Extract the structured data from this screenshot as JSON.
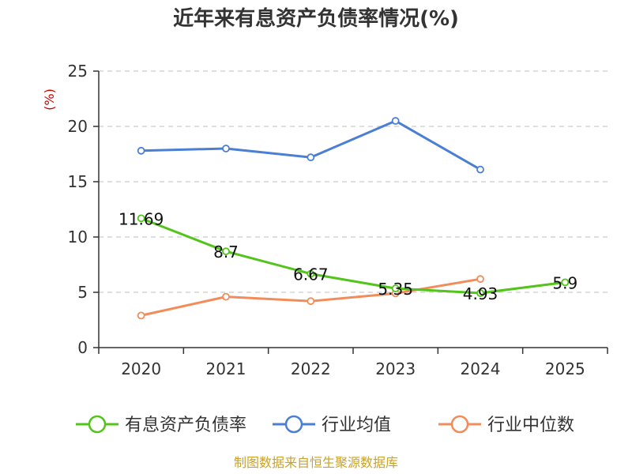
{
  "chart_data": {
    "type": "line",
    "title": "近年来有息资产负债率情况(%)",
    "ylabel": "(%)",
    "xlabel": "",
    "categories": [
      "2020",
      "2021",
      "2022",
      "2023",
      "2024",
      "2025"
    ],
    "ylim": [
      0,
      25
    ],
    "yticks": [
      0,
      5,
      10,
      15,
      20,
      25
    ],
    "grid": true,
    "legend_position": "bottom",
    "series": [
      {
        "name": "有息资产负债率",
        "color": "#52c41a",
        "values": [
          11.69,
          8.7,
          6.67,
          5.35,
          4.93,
          5.9
        ],
        "labels": [
          "11.69",
          "8.7",
          "6.67",
          "5.35",
          "4.93",
          "5.9"
        ]
      },
      {
        "name": "行业均值",
        "color": "#4a7fd4",
        "values": [
          17.8,
          18.0,
          17.2,
          20.5,
          16.1,
          null
        ]
      },
      {
        "name": "行业中位数",
        "color": "#f28c5a",
        "values": [
          2.9,
          4.6,
          4.2,
          4.9,
          6.2,
          null
        ]
      }
    ]
  },
  "source": "制图数据来自恒生聚源数据库"
}
